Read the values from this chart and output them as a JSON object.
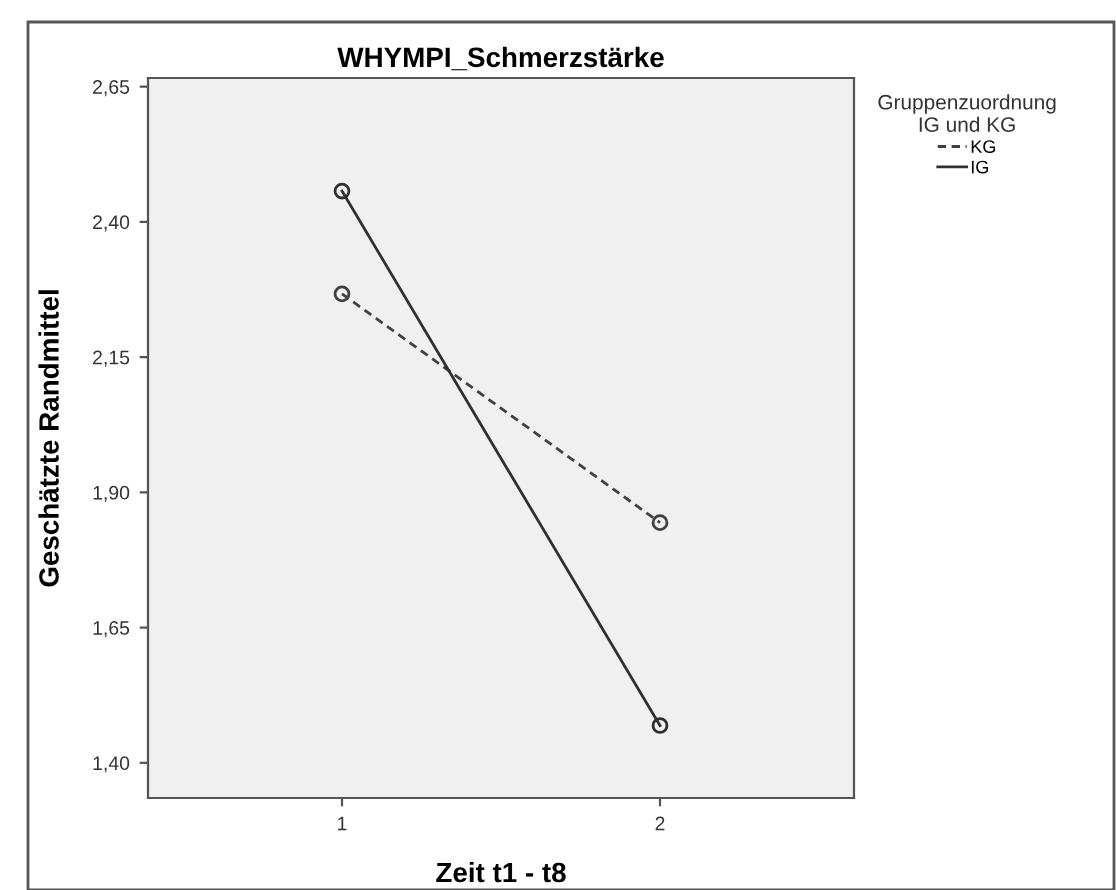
{
  "chart_data": {
    "type": "line",
    "title": "WHYMPI_Schmerzstärke",
    "xlabel": "Zeit t1 - t8",
    "ylabel": "Geschätzte Randmittel",
    "legend_title": "Gruppenzuordnung\nIG und KG",
    "categories": [
      "1",
      "2"
    ],
    "series": [
      {
        "name": "KG",
        "color": "#404040",
        "values": [
          2.267,
          1.844
        ],
        "line_style": "dashed"
      },
      {
        "name": "IG",
        "color": "#303030",
        "values": [
          2.457,
          1.469
        ],
        "line_style": "solid"
      }
    ],
    "ylim": [
      1.335,
      2.666
    ],
    "yticks": [
      {
        "value": 1.4,
        "label": "1,40"
      },
      {
        "value": 1.65,
        "label": "1,65"
      },
      {
        "value": 1.9,
        "label": "1,90"
      },
      {
        "value": 2.15,
        "label": "2,15"
      },
      {
        "value": 2.4,
        "label": "2,40"
      },
      {
        "value": 2.65,
        "label": "2,65"
      }
    ],
    "marker": "circle",
    "grid": false,
    "legend": "top right"
  }
}
